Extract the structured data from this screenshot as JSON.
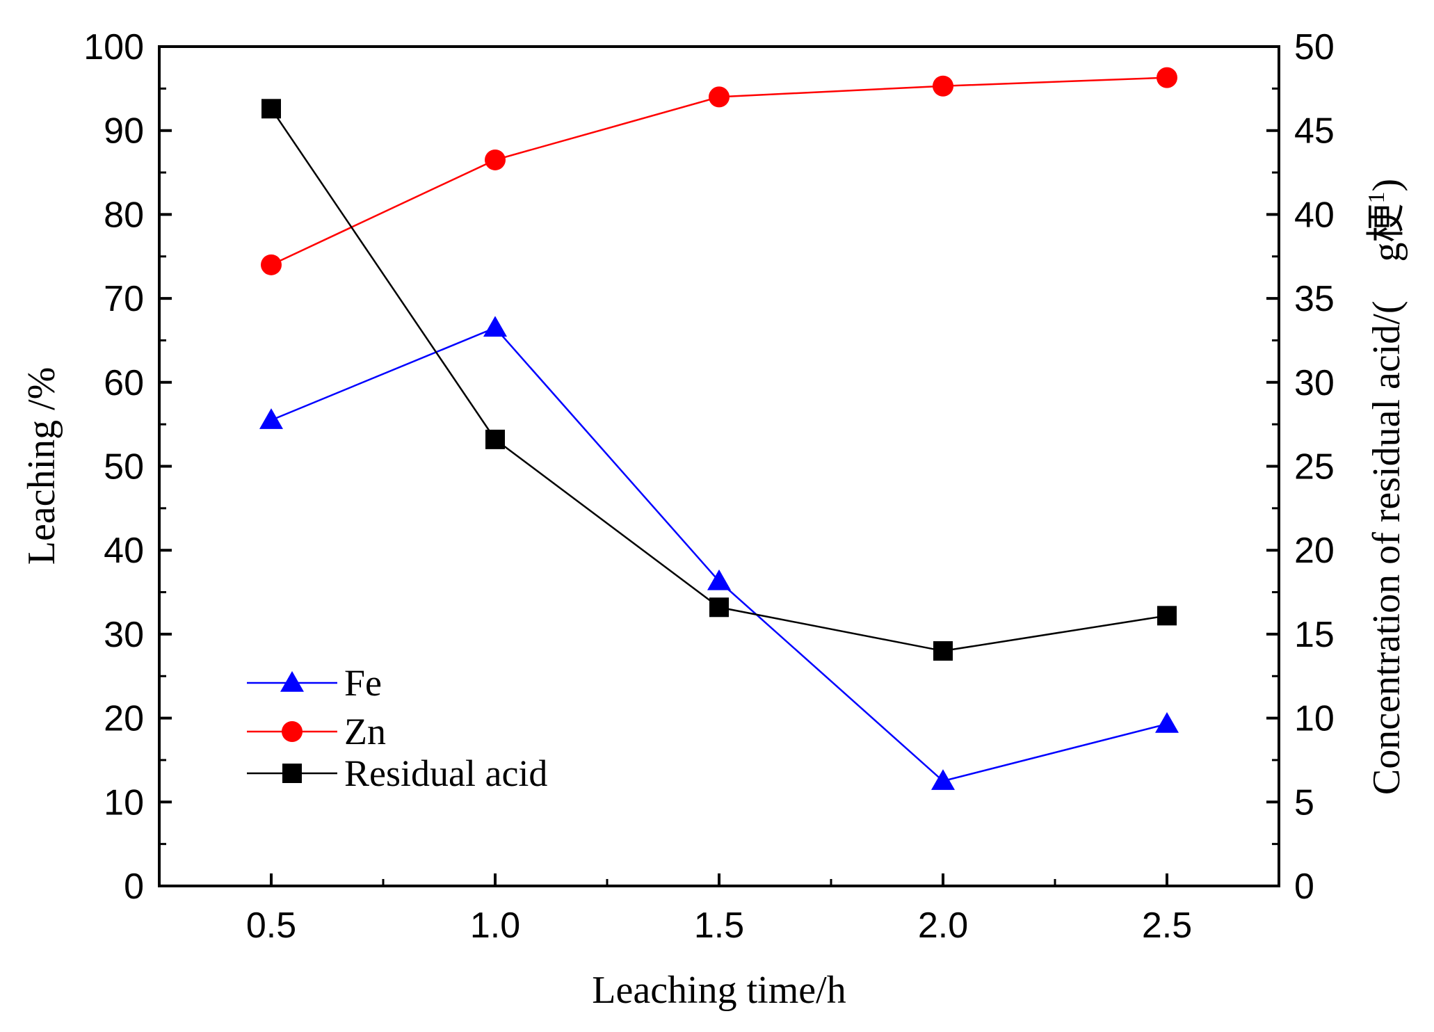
{
  "chart_data": {
    "type": "line",
    "xlabel": "Leaching time/h",
    "ylabel_left": "Leaching /%",
    "ylabel_right": "Concentration of residual acid/(　g梗",
    "ylabel_right_sup": "1",
    "ylabel_right_close": ")",
    "xlim": [
      0.25,
      2.75
    ],
    "ylim_left": [
      0,
      100
    ],
    "ylim_right": [
      0,
      50
    ],
    "x_ticks": [
      0.5,
      1.0,
      1.5,
      2.0,
      2.5
    ],
    "x_tick_labels": [
      "0.5",
      "1.0",
      "1.5",
      "2.0",
      "2.5"
    ],
    "x_minor_ticks": [
      0.75,
      1.25,
      1.75,
      2.25
    ],
    "y_left_ticks": [
      0,
      10,
      20,
      30,
      40,
      50,
      60,
      70,
      80,
      90,
      100
    ],
    "y_left_tick_labels": [
      "0",
      "10",
      "20",
      "30",
      "40",
      "50",
      "60",
      "70",
      "80",
      "90",
      "100"
    ],
    "y_right_ticks": [
      0,
      5,
      10,
      15,
      20,
      25,
      30,
      35,
      40,
      45,
      50
    ],
    "y_right_tick_labels": [
      "0",
      "5",
      "10",
      "15",
      "20",
      "25",
      "30",
      "35",
      "40",
      "45",
      "50"
    ],
    "series": [
      {
        "name": "Fe",
        "axis": "left",
        "color": "#0000ff",
        "marker": "triangle",
        "x": [
          0.5,
          1.0,
          1.5,
          2.0,
          2.5
        ],
        "values": [
          55.5,
          66.5,
          36.3,
          12.5,
          19.3
        ]
      },
      {
        "name": "Zn",
        "axis": "left",
        "color": "#ff0000",
        "marker": "circle",
        "x": [
          0.5,
          1.0,
          1.5,
          2.0,
          2.5
        ],
        "values": [
          74.0,
          86.5,
          94.0,
          95.3,
          96.3
        ]
      },
      {
        "name": "Residual acid",
        "axis": "right",
        "color": "#000000",
        "marker": "square",
        "x": [
          0.5,
          1.0,
          1.5,
          2.0,
          2.5
        ],
        "values": [
          46.3,
          26.6,
          16.6,
          14.0,
          16.1
        ]
      }
    ],
    "legend_position": "lower-left"
  }
}
